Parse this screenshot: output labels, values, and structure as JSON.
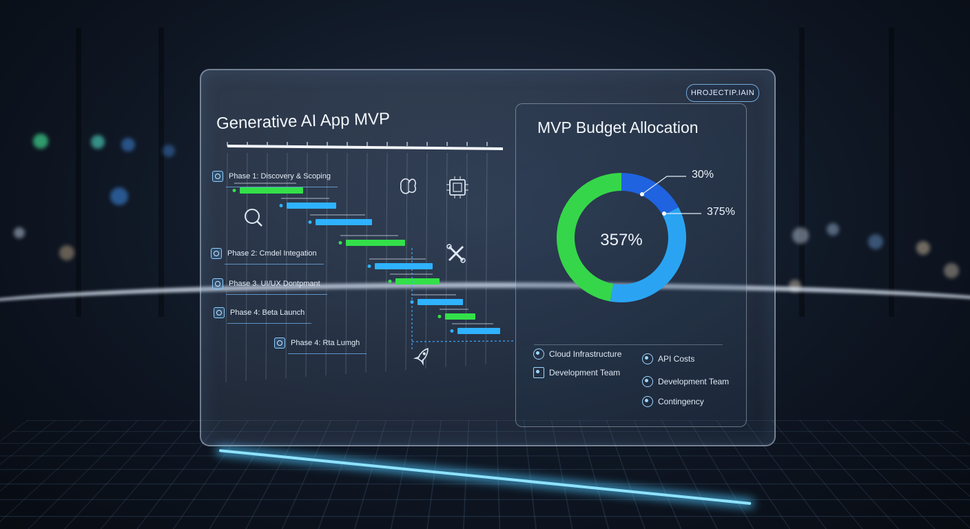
{
  "header": {
    "title": "Generative AI App MVP",
    "badge": "HROJECTIP.IAIN"
  },
  "gantt": {
    "phases": [
      {
        "label": "Phase 1: Discovery & Scoping"
      },
      {
        "label": "Phase 2: Cmdel Integation"
      },
      {
        "label": "Phase 3. UI/UX Dontpmant"
      },
      {
        "label": "Phase 4: Beta Launch"
      },
      {
        "label": "Phase 4: Rta Lumgh"
      }
    ],
    "icons": [
      "search-icon",
      "brain-icon",
      "chip-icon",
      "tools-icon",
      "rocket-icon"
    ],
    "colors": {
      "green": "#33e04a",
      "blue": "#2fb2ff",
      "grid": "#aab8cc"
    }
  },
  "budget": {
    "title": "MVP Budget Allocation",
    "center_label": "357%",
    "callouts": [
      "30%",
      "375%"
    ],
    "legend": [
      {
        "label": "Cloud Infrastructure",
        "icon": "cloud-icon"
      },
      {
        "label": "Development Team",
        "icon": "check-icon"
      },
      {
        "label": "API Costs",
        "icon": "api-icon"
      },
      {
        "label": "Development Team",
        "icon": "wrench-icon"
      },
      {
        "label": "Contingency",
        "icon": "gauge-icon"
      }
    ],
    "colors": {
      "dark_blue": "#1f63e0",
      "light_blue": "#2aa4f2",
      "green": "#36d64a"
    }
  }
}
